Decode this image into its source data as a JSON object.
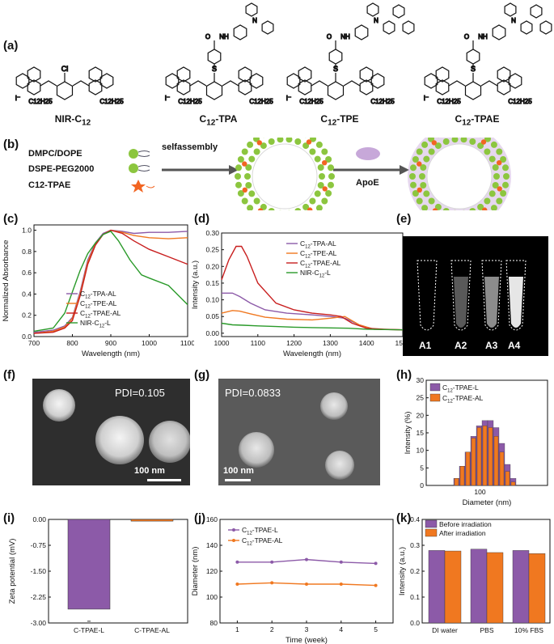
{
  "panels": {
    "a": "(a)",
    "b": "(b)",
    "c": "(c)",
    "d": "(d)",
    "e": "(e)",
    "f": "(f)",
    "g": "(g)",
    "h": "(h)",
    "i": "(i)",
    "j": "(j)",
    "k": "(k)"
  },
  "molecules": [
    {
      "name": "NIR-C",
      "sub": "12",
      "substituent": "Cl"
    },
    {
      "name": "C",
      "sub": "12",
      "suffix": "-TPA",
      "substituent": "S"
    },
    {
      "name": "C",
      "sub": "12",
      "suffix": "-TPE",
      "substituent": "S"
    },
    {
      "name": "C",
      "sub": "12",
      "suffix": "-TPAE",
      "substituent": "S"
    }
  ],
  "mol_labels": {
    "alkyl": "C12H25",
    "counterion": "I⁻",
    "amide": "NH",
    "carbonyl": "O",
    "amine": "N"
  },
  "assembly": {
    "components": [
      "DMPC/DOPE",
      "DSPE-PEG2000",
      "C12-TPAE"
    ],
    "step1": "selfassembly",
    "step2": "ApoE"
  },
  "colors": {
    "purple": "#8c5aa8",
    "orange": "#f07820",
    "red": "#c81e1e",
    "green": "#2a9a2a",
    "lipid_green": "#8cc63f",
    "star": "#f26522",
    "apoe": "#c7a8d9"
  },
  "chart_data": [
    {
      "id": "c",
      "type": "line",
      "xlabel": "Wavelength (nm)",
      "ylabel": "Normalized Absorbance",
      "xlim": [
        700,
        1100
      ],
      "ylim": [
        0,
        1.05
      ],
      "xticks": [
        700,
        800,
        900,
        1000,
        1100
      ],
      "yticks": [
        0.0,
        0.2,
        0.4,
        0.6,
        0.8,
        1.0
      ],
      "series": [
        {
          "name": "C12-TPA-AL",
          "color": "#8c5aa8",
          "x": [
            700,
            750,
            780,
            800,
            820,
            840,
            860,
            880,
            900,
            930,
            960,
            1000,
            1050,
            1100
          ],
          "y": [
            0.04,
            0.06,
            0.1,
            0.18,
            0.42,
            0.72,
            0.88,
            0.97,
            1.0,
            0.99,
            0.97,
            0.98,
            0.98,
            0.99
          ]
        },
        {
          "name": "C12-TPE-AL",
          "color": "#f07820",
          "x": [
            700,
            750,
            780,
            800,
            820,
            840,
            860,
            880,
            900,
            930,
            960,
            1000,
            1050,
            1100
          ],
          "y": [
            0.03,
            0.05,
            0.09,
            0.17,
            0.4,
            0.7,
            0.87,
            0.96,
            1.0,
            0.98,
            0.95,
            0.93,
            0.92,
            0.93
          ]
        },
        {
          "name": "C12-TPAE-AL",
          "color": "#c81e1e",
          "x": [
            700,
            750,
            780,
            800,
            820,
            840,
            860,
            880,
            900,
            930,
            960,
            1000,
            1050,
            1100
          ],
          "y": [
            0.03,
            0.04,
            0.08,
            0.15,
            0.38,
            0.68,
            0.86,
            0.96,
            1.0,
            0.97,
            0.9,
            0.82,
            0.75,
            0.68
          ]
        },
        {
          "name": "NIR-C12-L",
          "color": "#2a9a2a",
          "x": [
            700,
            750,
            780,
            800,
            820,
            840,
            860,
            880,
            900,
            920,
            950,
            980,
            1000,
            1050,
            1100
          ],
          "y": [
            0.05,
            0.08,
            0.22,
            0.42,
            0.62,
            0.78,
            0.88,
            0.96,
            0.99,
            0.9,
            0.72,
            0.58,
            0.55,
            0.48,
            0.3
          ]
        }
      ]
    },
    {
      "id": "d",
      "type": "line",
      "xlabel": "Wavelength (nm)",
      "ylabel": "Intensity (a.u.)",
      "xlim": [
        1000,
        1500
      ],
      "ylim": [
        -0.01,
        0.3
      ],
      "xticks": [
        1000,
        1100,
        1200,
        1300,
        1400,
        1500
      ],
      "yticks": [
        0.0,
        0.05,
        0.1,
        0.15,
        0.2,
        0.25,
        0.3
      ],
      "series": [
        {
          "name": "C12-TPA-AL",
          "color": "#8c5aa8",
          "x": [
            1000,
            1030,
            1050,
            1080,
            1120,
            1180,
            1250,
            1300,
            1340,
            1380,
            1420,
            1500
          ],
          "y": [
            0.12,
            0.12,
            0.11,
            0.09,
            0.07,
            0.06,
            0.055,
            0.05,
            0.045,
            0.025,
            0.012,
            0.01
          ]
        },
        {
          "name": "C12-TPE-AL",
          "color": "#f07820",
          "x": [
            1000,
            1030,
            1050,
            1080,
            1120,
            1180,
            1250,
            1300,
            1340,
            1380,
            1420,
            1500
          ],
          "y": [
            0.06,
            0.068,
            0.066,
            0.058,
            0.048,
            0.042,
            0.04,
            0.045,
            0.05,
            0.025,
            0.012,
            0.01
          ]
        },
        {
          "name": "C12-TPAE-AL",
          "color": "#c81e1e",
          "x": [
            1000,
            1020,
            1040,
            1055,
            1070,
            1100,
            1150,
            1200,
            1250,
            1300,
            1330,
            1360,
            1400,
            1450,
            1500
          ],
          "y": [
            0.16,
            0.22,
            0.26,
            0.26,
            0.23,
            0.15,
            0.09,
            0.07,
            0.06,
            0.055,
            0.05,
            0.03,
            0.015,
            0.012,
            0.01
          ]
        },
        {
          "name": "NIR-C12-L",
          "color": "#2a9a2a",
          "x": [
            1000,
            1030,
            1060,
            1100,
            1150,
            1200,
            1250,
            1300,
            1350,
            1400,
            1500
          ],
          "y": [
            0.03,
            0.025,
            0.024,
            0.022,
            0.02,
            0.018,
            0.017,
            0.016,
            0.015,
            0.012,
            0.01
          ]
        }
      ]
    },
    {
      "id": "h",
      "type": "bar",
      "xlabel": "Diameter (nm)",
      "ylabel": "Intensity (%)",
      "ylim": [
        0,
        30
      ],
      "yticks": [
        0,
        5,
        10,
        15,
        20,
        25,
        30
      ],
      "xtick_label": "100",
      "series": [
        {
          "name": "C12-TPAE-L",
          "color": "#8c5aa8",
          "values": [
            2,
            5.5,
            9.5,
            14,
            17,
            18.5,
            18.5,
            16.5,
            12,
            6,
            2
          ]
        },
        {
          "name": "C12-TPAE-AL",
          "color": "#f07820",
          "values": [
            2,
            5.5,
            9.5,
            13.5,
            16.5,
            17,
            16.5,
            14,
            9.5,
            4,
            1
          ]
        }
      ]
    },
    {
      "id": "i",
      "type": "bar",
      "ylabel": "Zeta potential (mV)",
      "ylim": [
        -3.0,
        0.0
      ],
      "yticks": [
        0.0,
        -0.75,
        -1.5,
        -2.25,
        -3.0
      ],
      "categories": [
        "C12-TPAE-L",
        "C12-TPAE-AL"
      ],
      "values": [
        -2.6,
        -0.05
      ],
      "colors": [
        "#8c5aa8",
        "#f07820"
      ]
    },
    {
      "id": "j",
      "type": "line",
      "xlabel": "Time (week)",
      "ylabel": "Diameter (nm)",
      "xlim": [
        0.5,
        5.5
      ],
      "ylim": [
        80,
        160
      ],
      "xticks": [
        1,
        2,
        3,
        4,
        5
      ],
      "yticks": [
        80,
        100,
        120,
        140,
        160
      ],
      "series": [
        {
          "name": "C12-TPAE-L",
          "color": "#8c5aa8",
          "x": [
            1,
            2,
            3,
            4,
            5
          ],
          "y": [
            127,
            127,
            129,
            127,
            126
          ]
        },
        {
          "name": "C12-TPAE-AL",
          "color": "#f07820",
          "x": [
            1,
            2,
            3,
            4,
            5
          ],
          "y": [
            110,
            111,
            110,
            110,
            109
          ]
        }
      ]
    },
    {
      "id": "k",
      "type": "bar",
      "ylabel": "Intensity (a.u.)",
      "ylim": [
        0,
        0.4
      ],
      "yticks": [
        0.0,
        0.1,
        0.2,
        0.3,
        0.4
      ],
      "categories": [
        "DI water",
        "PBS",
        "10% FBS"
      ],
      "series": [
        {
          "name": "Before irradiation",
          "color": "#8c5aa8",
          "values": [
            0.28,
            0.285,
            0.28
          ]
        },
        {
          "name": "After irradiation",
          "color": "#f07820",
          "values": [
            0.278,
            0.272,
            0.268
          ]
        }
      ]
    }
  ],
  "vials": [
    "A1",
    "A2",
    "A3",
    "A4"
  ],
  "tem": [
    {
      "pdi": "PDI=0.105",
      "scale": "100 nm"
    },
    {
      "pdi": "PDI=0.0833",
      "scale": "100 nm"
    }
  ]
}
